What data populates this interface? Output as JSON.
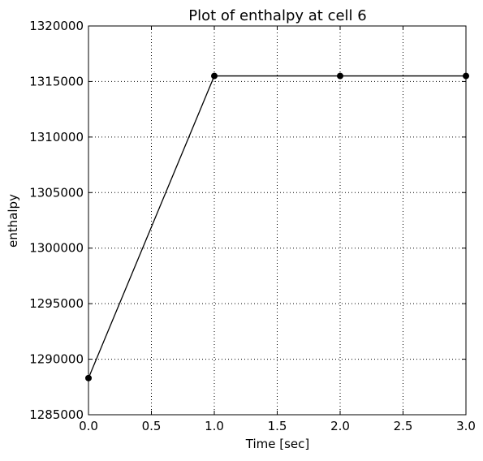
{
  "chart_data": {
    "type": "line",
    "title": "Plot of enthalpy at cell 6",
    "xlabel": "Time [sec]",
    "ylabel": "enthalpy",
    "xlim": [
      0.0,
      3.0
    ],
    "ylim": [
      1285000,
      1320000
    ],
    "xticks": [
      0.0,
      0.5,
      1.0,
      1.5,
      2.0,
      2.5,
      3.0
    ],
    "xtick_labels": [
      "0.0",
      "0.5",
      "1.0",
      "1.5",
      "2.0",
      "2.5",
      "3.0"
    ],
    "yticks": [
      1285000,
      1290000,
      1295000,
      1300000,
      1305000,
      1310000,
      1315000,
      1320000
    ],
    "ytick_labels": [
      "1285000",
      "1290000",
      "1295000",
      "1300000",
      "1305000",
      "1310000",
      "1315000",
      "1320000"
    ],
    "grid": true,
    "series": [
      {
        "x": [
          0.0,
          1.0,
          2.0,
          3.0
        ],
        "y": [
          1288300,
          1315500,
          1315500,
          1315500
        ],
        "color": "#000000",
        "marker": "circle"
      }
    ]
  }
}
